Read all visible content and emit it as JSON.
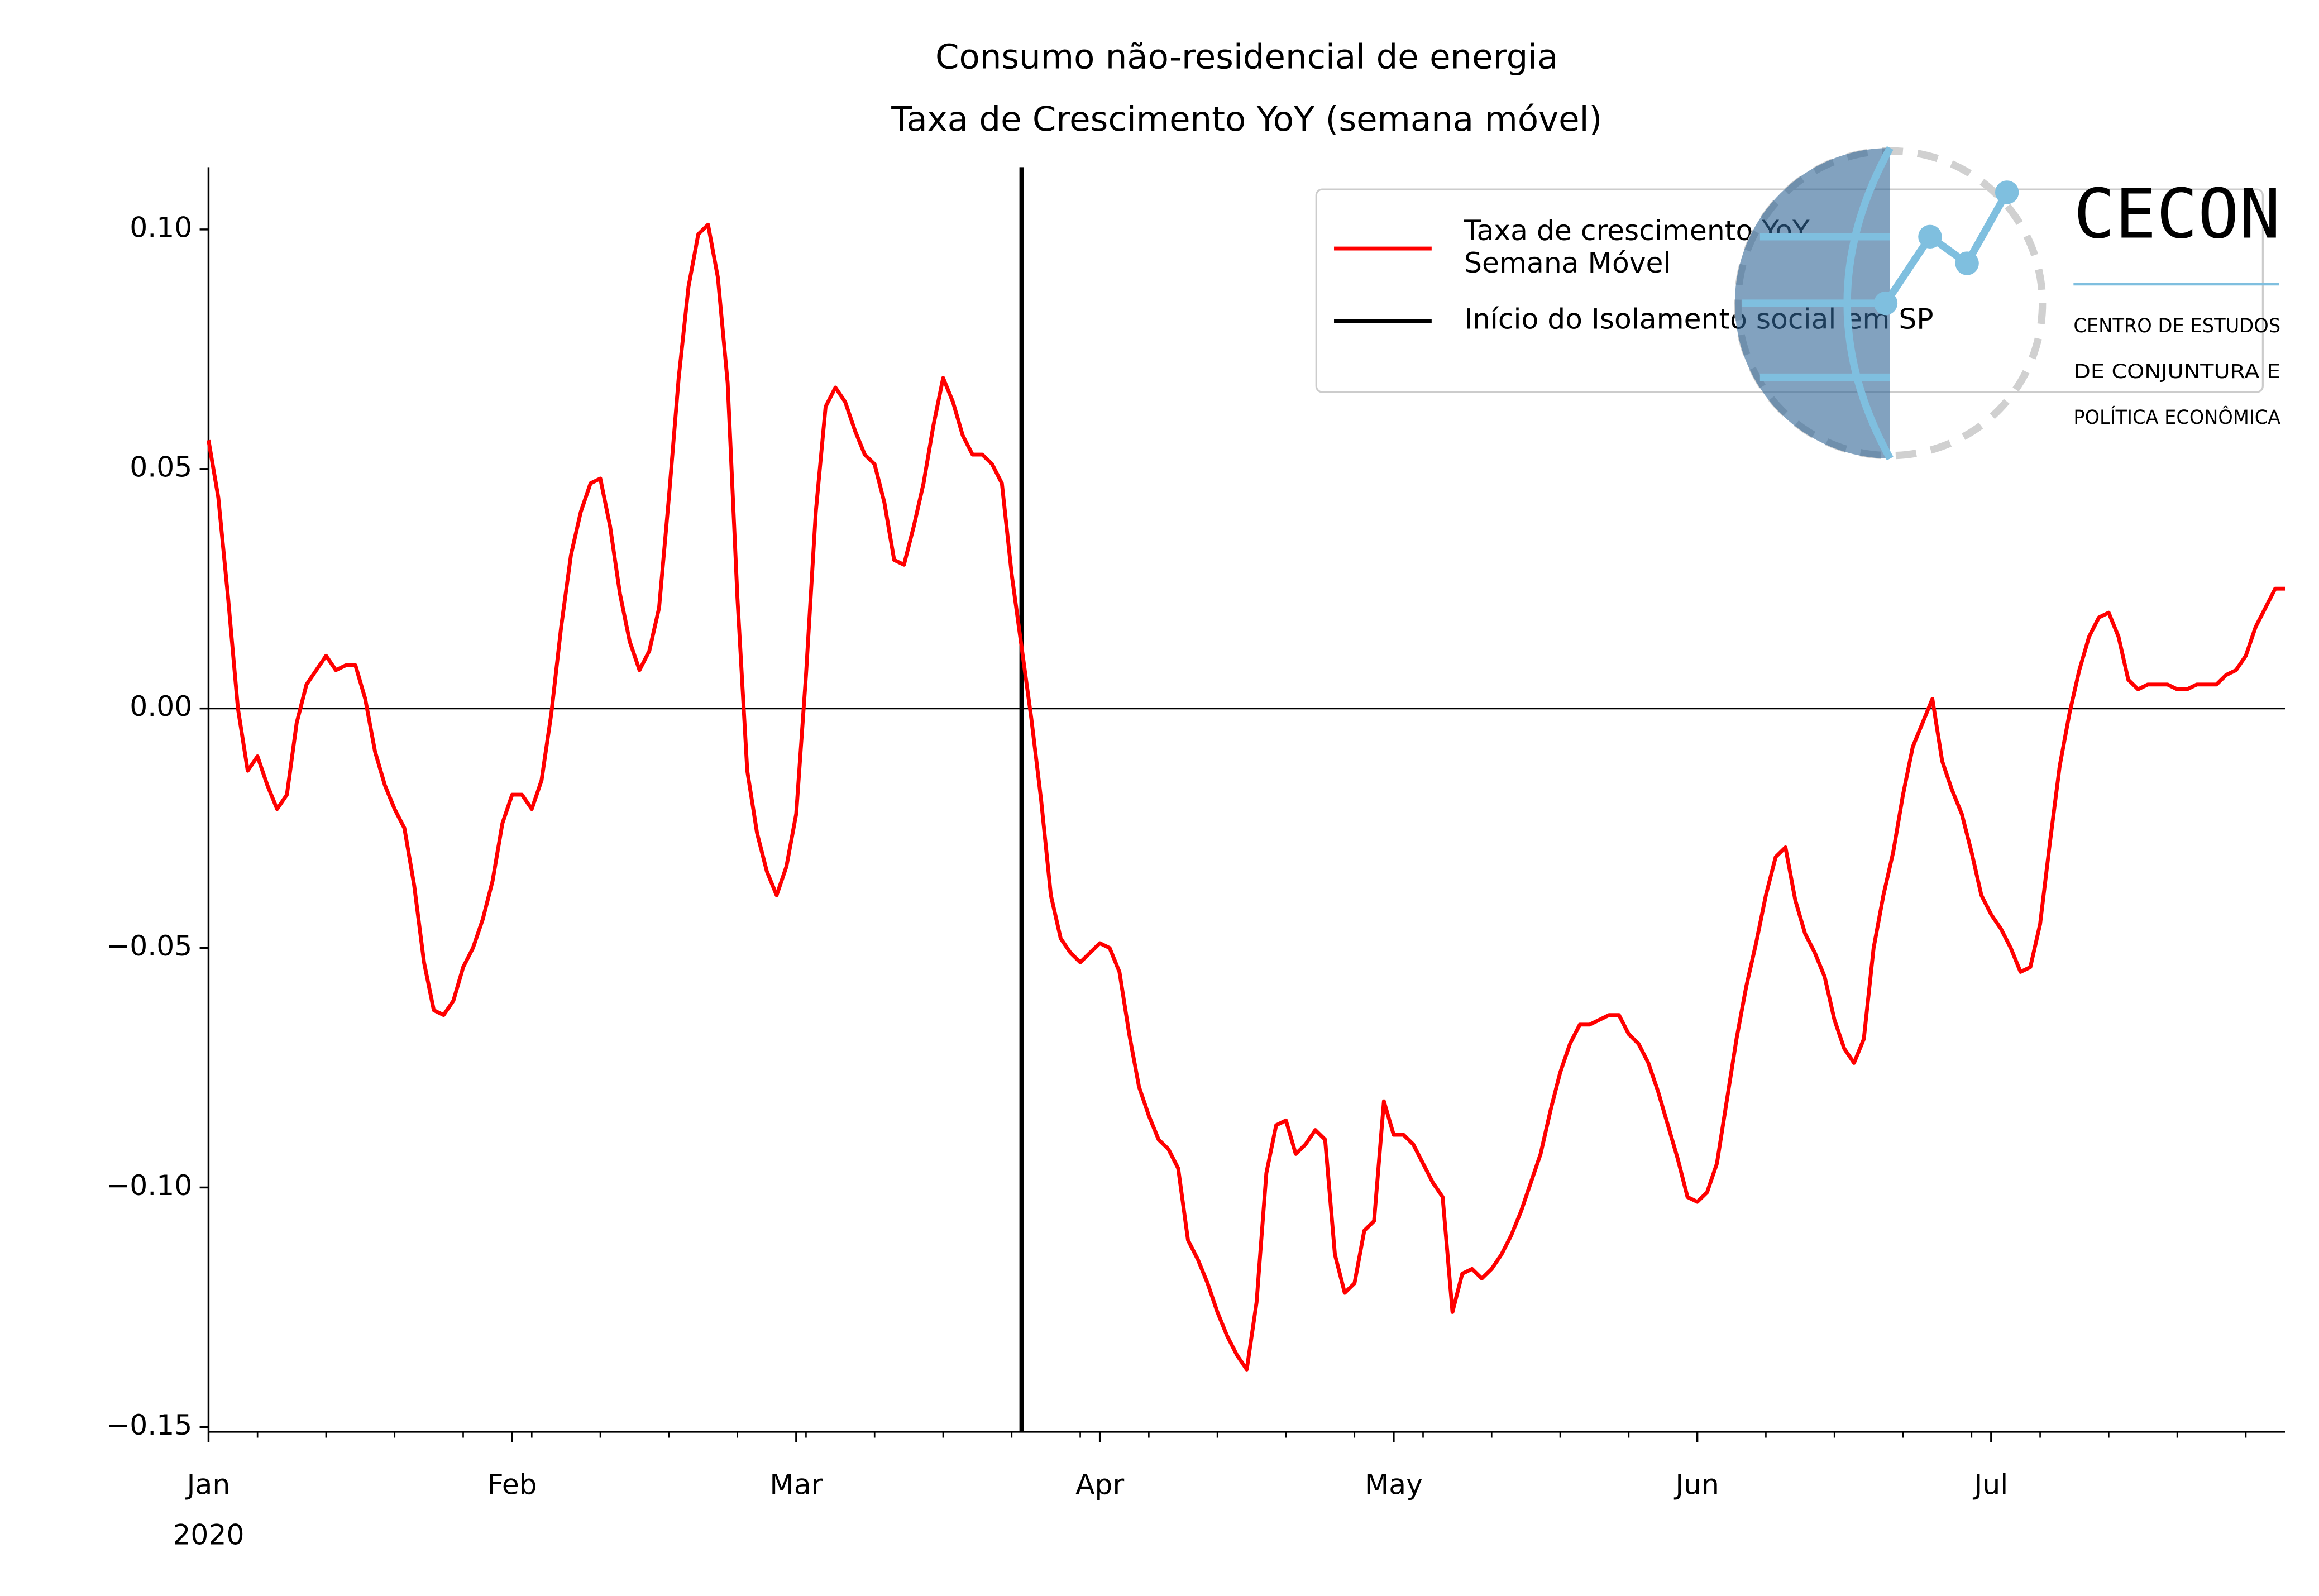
{
  "chart_data": {
    "type": "line",
    "title": "Consumo não-residencial de energia",
    "subtitle": "Taxa de Crescimento YoY (semana móvel)",
    "x": [
      "2020-01-01",
      "2020-01-02",
      "2020-01-03",
      "2020-01-04",
      "2020-01-05",
      "2020-01-06",
      "2020-01-07",
      "2020-01-08",
      "2020-01-09",
      "2020-01-10",
      "2020-01-11",
      "2020-01-12",
      "2020-01-13",
      "2020-01-14",
      "2020-01-15",
      "2020-01-16",
      "2020-01-17",
      "2020-01-18",
      "2020-01-19",
      "2020-01-20",
      "2020-01-21",
      "2020-01-22",
      "2020-01-23",
      "2020-01-24",
      "2020-01-25",
      "2020-01-26",
      "2020-01-27",
      "2020-01-28",
      "2020-01-29",
      "2020-01-30",
      "2020-01-31",
      "2020-02-01",
      "2020-02-02",
      "2020-02-03",
      "2020-02-04",
      "2020-02-05",
      "2020-02-06",
      "2020-02-07",
      "2020-02-08",
      "2020-02-09",
      "2020-02-10",
      "2020-02-11",
      "2020-02-12",
      "2020-02-13",
      "2020-02-14",
      "2020-02-15",
      "2020-02-16",
      "2020-02-17",
      "2020-02-18",
      "2020-02-19",
      "2020-02-20",
      "2020-02-21",
      "2020-02-22",
      "2020-02-23",
      "2020-02-24",
      "2020-02-25",
      "2020-02-26",
      "2020-02-27",
      "2020-02-28",
      "2020-02-29",
      "2020-03-01",
      "2020-03-02",
      "2020-03-03",
      "2020-03-04",
      "2020-03-05",
      "2020-03-06",
      "2020-03-07",
      "2020-03-08",
      "2020-03-09",
      "2020-03-10",
      "2020-03-11",
      "2020-03-12",
      "2020-03-13",
      "2020-03-14",
      "2020-03-15",
      "2020-03-16",
      "2020-03-17",
      "2020-03-18",
      "2020-03-19",
      "2020-03-20",
      "2020-03-21",
      "2020-03-22",
      "2020-03-23",
      "2020-03-24",
      "2020-03-25",
      "2020-03-26",
      "2020-03-27",
      "2020-03-28",
      "2020-03-29",
      "2020-03-30",
      "2020-03-31",
      "2020-04-01",
      "2020-04-02",
      "2020-04-03",
      "2020-04-04",
      "2020-04-05",
      "2020-04-06",
      "2020-04-07",
      "2020-04-08",
      "2020-04-09",
      "2020-04-10",
      "2020-04-11",
      "2020-04-12",
      "2020-04-13",
      "2020-04-14",
      "2020-04-15",
      "2020-04-16",
      "2020-04-17",
      "2020-04-18",
      "2020-04-19",
      "2020-04-20",
      "2020-04-21",
      "2020-04-22",
      "2020-04-23",
      "2020-04-24",
      "2020-04-25",
      "2020-04-26",
      "2020-04-27",
      "2020-04-28",
      "2020-04-29",
      "2020-04-30",
      "2020-05-01",
      "2020-05-02",
      "2020-05-03",
      "2020-05-04",
      "2020-05-05",
      "2020-05-06",
      "2020-05-07",
      "2020-05-08",
      "2020-05-09",
      "2020-05-10",
      "2020-05-11",
      "2020-05-12",
      "2020-05-13",
      "2020-05-14",
      "2020-05-15",
      "2020-05-16",
      "2020-05-17",
      "2020-05-18",
      "2020-05-19",
      "2020-05-20",
      "2020-05-21",
      "2020-05-22",
      "2020-05-23",
      "2020-05-24",
      "2020-05-25",
      "2020-05-26",
      "2020-05-27",
      "2020-05-28",
      "2020-05-29",
      "2020-05-30",
      "2020-05-31",
      "2020-06-01",
      "2020-06-02",
      "2020-06-03",
      "2020-06-04",
      "2020-06-05",
      "2020-06-06",
      "2020-06-07",
      "2020-06-08",
      "2020-06-09",
      "2020-06-10",
      "2020-06-11",
      "2020-06-12",
      "2020-06-13",
      "2020-06-14",
      "2020-06-15",
      "2020-06-16",
      "2020-06-17",
      "2020-06-18",
      "2020-06-19",
      "2020-06-20",
      "2020-06-21",
      "2020-06-22",
      "2020-06-23",
      "2020-06-24",
      "2020-06-25",
      "2020-06-26",
      "2020-06-27",
      "2020-06-28",
      "2020-06-29",
      "2020-06-30",
      "2020-07-01",
      "2020-07-02",
      "2020-07-03",
      "2020-07-04",
      "2020-07-05",
      "2020-07-06",
      "2020-07-07",
      "2020-07-08",
      "2020-07-09",
      "2020-07-10",
      "2020-07-11",
      "2020-07-12",
      "2020-07-13",
      "2020-07-14",
      "2020-07-15",
      "2020-07-16",
      "2020-07-17",
      "2020-07-18",
      "2020-07-19",
      "2020-07-20",
      "2020-07-21",
      "2020-07-22",
      "2020-07-23",
      "2020-07-24",
      "2020-07-25",
      "2020-07-26",
      "2020-07-27",
      "2020-07-28",
      "2020-07-29",
      "2020-07-30",
      "2020-07-31"
    ],
    "series": [
      {
        "name": "Taxa de crescimento YoY\nSemana Móvel",
        "color": "#ff0000",
        "values": [
          0.056,
          0.044,
          0.023,
          0.0,
          -0.013,
          -0.01,
          -0.016,
          -0.021,
          -0.018,
          -0.003,
          0.005,
          0.008,
          0.011,
          0.008,
          0.009,
          0.009,
          0.002,
          -0.009,
          -0.016,
          -0.021,
          -0.025,
          -0.037,
          -0.053,
          -0.063,
          -0.064,
          -0.061,
          -0.054,
          -0.05,
          -0.044,
          -0.036,
          -0.024,
          -0.018,
          -0.018,
          -0.021,
          -0.015,
          -0.001,
          0.017,
          0.032,
          0.041,
          0.047,
          0.048,
          0.038,
          0.024,
          0.014,
          0.008,
          0.012,
          0.021,
          0.044,
          0.069,
          0.088,
          0.099,
          0.101,
          0.09,
          0.068,
          0.023,
          -0.013,
          -0.026,
          -0.034,
          -0.039,
          -0.033,
          -0.022,
          0.007,
          0.041,
          0.063,
          0.067,
          0.064,
          0.058,
          0.053,
          0.051,
          0.043,
          0.031,
          0.03,
          0.038,
          0.047,
          0.059,
          0.069,
          0.064,
          0.057,
          0.053,
          0.053,
          0.051,
          0.047,
          0.028,
          0.013,
          -0.002,
          -0.019,
          -0.039,
          -0.048,
          -0.051,
          -0.053,
          -0.051,
          -0.049,
          -0.05,
          -0.055,
          -0.068,
          -0.079,
          -0.085,
          -0.09,
          -0.092,
          -0.096,
          -0.111,
          -0.115,
          -0.12,
          -0.126,
          -0.131,
          -0.135,
          -0.138,
          -0.124,
          -0.097,
          -0.087,
          -0.086,
          -0.093,
          -0.091,
          -0.088,
          -0.09,
          -0.114,
          -0.122,
          -0.12,
          -0.109,
          -0.107,
          -0.082,
          -0.089,
          -0.089,
          -0.091,
          -0.095,
          -0.099,
          -0.102,
          -0.126,
          -0.118,
          -0.117,
          -0.119,
          -0.117,
          -0.114,
          -0.11,
          -0.105,
          -0.099,
          -0.093,
          -0.084,
          -0.076,
          -0.07,
          -0.066,
          -0.066,
          -0.065,
          -0.064,
          -0.064,
          -0.068,
          -0.07,
          -0.074,
          -0.08,
          -0.087,
          -0.094,
          -0.102,
          -0.103,
          -0.101,
          -0.095,
          -0.082,
          -0.069,
          -0.058,
          -0.049,
          -0.039,
          -0.031,
          -0.029,
          -0.04,
          -0.047,
          -0.051,
          -0.056,
          -0.065,
          -0.071,
          -0.074,
          -0.069,
          -0.05,
          -0.039,
          -0.03,
          -0.018,
          -0.008,
          -0.003,
          0.002,
          -0.011,
          -0.017,
          -0.022,
          -0.03,
          -0.039,
          -0.043,
          -0.046,
          -0.05,
          -0.055,
          -0.054,
          -0.045,
          -0.028,
          -0.012,
          -0.001,
          0.008,
          0.015,
          0.019,
          0.02,
          0.015,
          0.006,
          0.004,
          0.005,
          0.005,
          0.005,
          0.004,
          0.004,
          0.005,
          0.005,
          0.005,
          0.007,
          0.008,
          0.011,
          0.017,
          0.021,
          0.025,
          0.025
        ]
      }
    ],
    "vlines": [
      {
        "name": "Início do Isolamento social em SP",
        "x": "2020-03-24",
        "color": "#000000"
      }
    ],
    "hlines": [
      {
        "y": 0,
        "color": "#000000"
      }
    ],
    "xlim": [
      "2020-01-01",
      "2020-07-31"
    ],
    "xticks": [
      {
        "value": "2020-01-01",
        "label": "Jan"
      },
      {
        "value": "2020-02-01",
        "label": "Feb"
      },
      {
        "value": "2020-03-01",
        "label": "Mar"
      },
      {
        "value": "2020-04-01",
        "label": "Apr"
      },
      {
        "value": "2020-05-01",
        "label": "May"
      },
      {
        "value": "2020-06-01",
        "label": "Jun"
      },
      {
        "value": "2020-07-01",
        "label": "Jul"
      }
    ],
    "x_year_label": "2020",
    "xticks_minor": [
      "2020-01-06",
      "2020-01-13",
      "2020-01-20",
      "2020-01-27",
      "2020-02-03",
      "2020-02-10",
      "2020-02-17",
      "2020-02-24",
      "2020-03-02",
      "2020-03-09",
      "2020-03-16",
      "2020-03-23",
      "2020-03-30",
      "2020-04-06",
      "2020-04-13",
      "2020-04-20",
      "2020-04-27",
      "2020-05-04",
      "2020-05-11",
      "2020-05-18",
      "2020-05-25",
      "2020-06-01",
      "2020-06-08",
      "2020-06-15",
      "2020-06-22",
      "2020-06-29",
      "2020-07-06",
      "2020-07-13",
      "2020-07-20",
      "2020-07-27"
    ],
    "ylim": [
      -0.151,
      0.113
    ],
    "yticks": [
      {
        "value": -0.15,
        "label": "−0.15"
      },
      {
        "value": -0.1,
        "label": "−0.10"
      },
      {
        "value": -0.05,
        "label": "−0.05"
      },
      {
        "value": 0,
        "label": "0.00"
      },
      {
        "value": 0.05,
        "label": "0.05"
      },
      {
        "value": 0.1,
        "label": "0.10"
      }
    ],
    "legend": "upper right",
    "logo": {
      "name": "CECON",
      "lines": [
        "CENTRO DE ESTUDOS",
        "DE CONJUNTURA E",
        "POLÍTICA ECONÔMICA"
      ]
    }
  }
}
